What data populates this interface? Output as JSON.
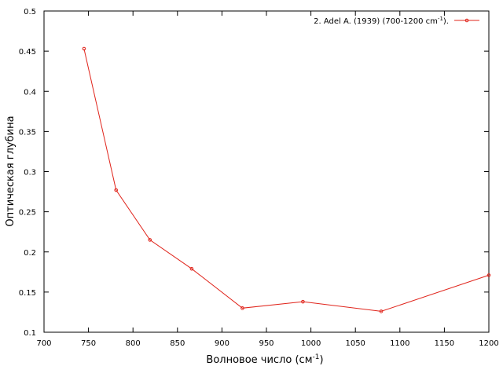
{
  "chart_data": {
    "type": "line",
    "xlabel": "Волновое число (см",
    "xlabel_sup": "-1",
    "xlabel_tail": ")",
    "ylabel": "Оптическая глубина",
    "xlim": [
      700,
      1200
    ],
    "ylim": [
      0.1,
      0.5
    ],
    "x_ticks": [
      700,
      750,
      800,
      850,
      900,
      950,
      1000,
      1050,
      1100,
      1150,
      1200
    ],
    "y_ticks": [
      0.1,
      0.15,
      0.2,
      0.25,
      0.3,
      0.35,
      0.4,
      0.45,
      0.5
    ],
    "x_tick_labels": [
      "700",
      "750",
      "800",
      "850",
      "900",
      "950",
      "1000",
      "1050",
      "1100",
      "1150",
      "1200"
    ],
    "y_tick_labels": [
      "0.1",
      "0.15",
      "0.2",
      "0.25",
      "0.3",
      "0.35",
      "0.4",
      "0.45",
      "0.5"
    ],
    "grid": false,
    "legend_position": "top-right",
    "series": [
      {
        "name": "2. Adel A. (1939) (700-1200 cm",
        "name_sup": "-1",
        "name_tail": ").",
        "color": "#e0241b",
        "x": [
          745,
          781,
          819,
          866,
          923,
          991,
          1079,
          1200
        ],
        "y": [
          0.453,
          0.277,
          0.215,
          0.179,
          0.13,
          0.138,
          0.126,
          0.171
        ]
      }
    ]
  }
}
